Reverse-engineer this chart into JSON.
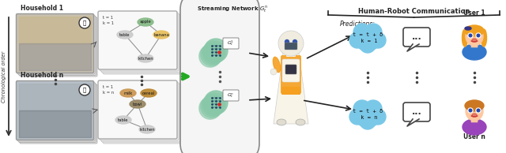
{
  "figsize": [
    6.4,
    1.94
  ],
  "dpi": 100,
  "bg_color": "#eeeeee",
  "outer_bg": "#f5f5f5",
  "sections": {
    "left_label": "Chronological order",
    "household1_label": "Household 1",
    "householdn_label": "Household n",
    "streaming_label": "Streaming Network $G_t^n$",
    "human_robot_label": "Human-Robot Communication",
    "predictions_label": "Predictions:",
    "user1_label": "User 1",
    "usern_label": "User n"
  },
  "cloud1_text": "t = t + δ\n k = 1",
  "cloudn_text": "t = t + δ\n k = n",
  "cloud_color": "#7ac8e8",
  "photo1_colors": [
    "#c8c0b0",
    "#b0c0c8",
    "#d8d0c0"
  ],
  "photo2_colors": [
    "#b8c0c8",
    "#909898",
    "#c0c8d0"
  ],
  "node_colors": {
    "apple": "#88bb88",
    "banana": "#e8c060",
    "table": "#cccccc",
    "kitchen": "#cccccc",
    "milk": "#cc9955",
    "cereal": "#bb8833",
    "bowl": "#998866"
  },
  "network_color": "#88c8a8",
  "arrow_color": "#222222",
  "green_arrow": "#22aa22",
  "dots": "#444444",
  "robot_body": "#f8f4e8",
  "robot_orange": "#f5a020",
  "robot_head_color": "#f0ede0"
}
